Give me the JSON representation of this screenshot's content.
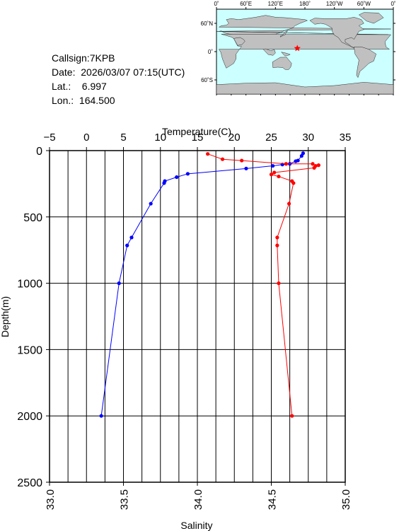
{
  "station": {
    "callsign": "Callsign:7KPB",
    "date": "Date:  2026/03/07 07:15(UTC)",
    "lat": "Lat.:    6.997",
    "lon": "Lon.:  164.500"
  },
  "map": {
    "top_labels": [
      "0˚",
      "60˚E",
      "120˚E",
      "180˚",
      "120˚W",
      "60˚W",
      "0˚"
    ],
    "lat_labels": [
      "60˚N",
      "0˚",
      "60˚S"
    ],
    "ocean_color": "#ccffff",
    "land_color": "#c0c0c0",
    "marker_color": "#ff0000",
    "marker_lat": 6.997,
    "marker_lon": 164.5
  },
  "chart_data": {
    "type": "line",
    "ylabel": "Depth(m)",
    "ylim": [
      2500,
      0
    ],
    "yticks": [
      "0",
      "500",
      "1000",
      "1500",
      "2000",
      "2500"
    ],
    "top_axis": {
      "label": "Temperature(C)",
      "range": [
        -5,
        35
      ],
      "ticks": [
        "−5",
        "0",
        "5",
        "10",
        "15",
        "20",
        "25",
        "30",
        "35"
      ]
    },
    "bottom_axis": {
      "label": "Salinity",
      "range": [
        33.0,
        35.0
      ],
      "ticks": [
        "33.0",
        "33.5",
        "34.0",
        "34.5",
        "35.0"
      ]
    },
    "grid": true,
    "series": [
      {
        "axis": "temperature",
        "color": "#0000ff",
        "points": [
          [
            29.3,
            20
          ],
          [
            29.1,
            40
          ],
          [
            28.6,
            75
          ],
          [
            28.3,
            80
          ],
          [
            27.5,
            100
          ],
          [
            26.5,
            105
          ],
          [
            25.2,
            115
          ],
          [
            21.6,
            135
          ],
          [
            13.7,
            175
          ],
          [
            12.2,
            200
          ],
          [
            10.6,
            230
          ],
          [
            10.5,
            245
          ],
          [
            8.7,
            400
          ],
          [
            6.1,
            655
          ],
          [
            5.5,
            715
          ],
          [
            4.4,
            1000
          ],
          [
            2.0,
            2000
          ]
        ]
      },
      {
        "axis": "salinity",
        "color": "#ff0000",
        "points": [
          [
            34.07,
            25
          ],
          [
            34.17,
            65
          ],
          [
            34.3,
            75
          ],
          [
            34.6,
            100
          ],
          [
            34.78,
            100
          ],
          [
            34.8,
            115
          ],
          [
            34.82,
            110
          ],
          [
            34.79,
            130
          ],
          [
            34.52,
            165
          ],
          [
            34.5,
            180
          ],
          [
            34.55,
            195
          ],
          [
            34.64,
            230
          ],
          [
            34.65,
            245
          ],
          [
            34.62,
            400
          ],
          [
            34.54,
            655
          ],
          [
            34.54,
            715
          ],
          [
            34.55,
            1000
          ],
          [
            34.64,
            2000
          ]
        ]
      }
    ]
  }
}
